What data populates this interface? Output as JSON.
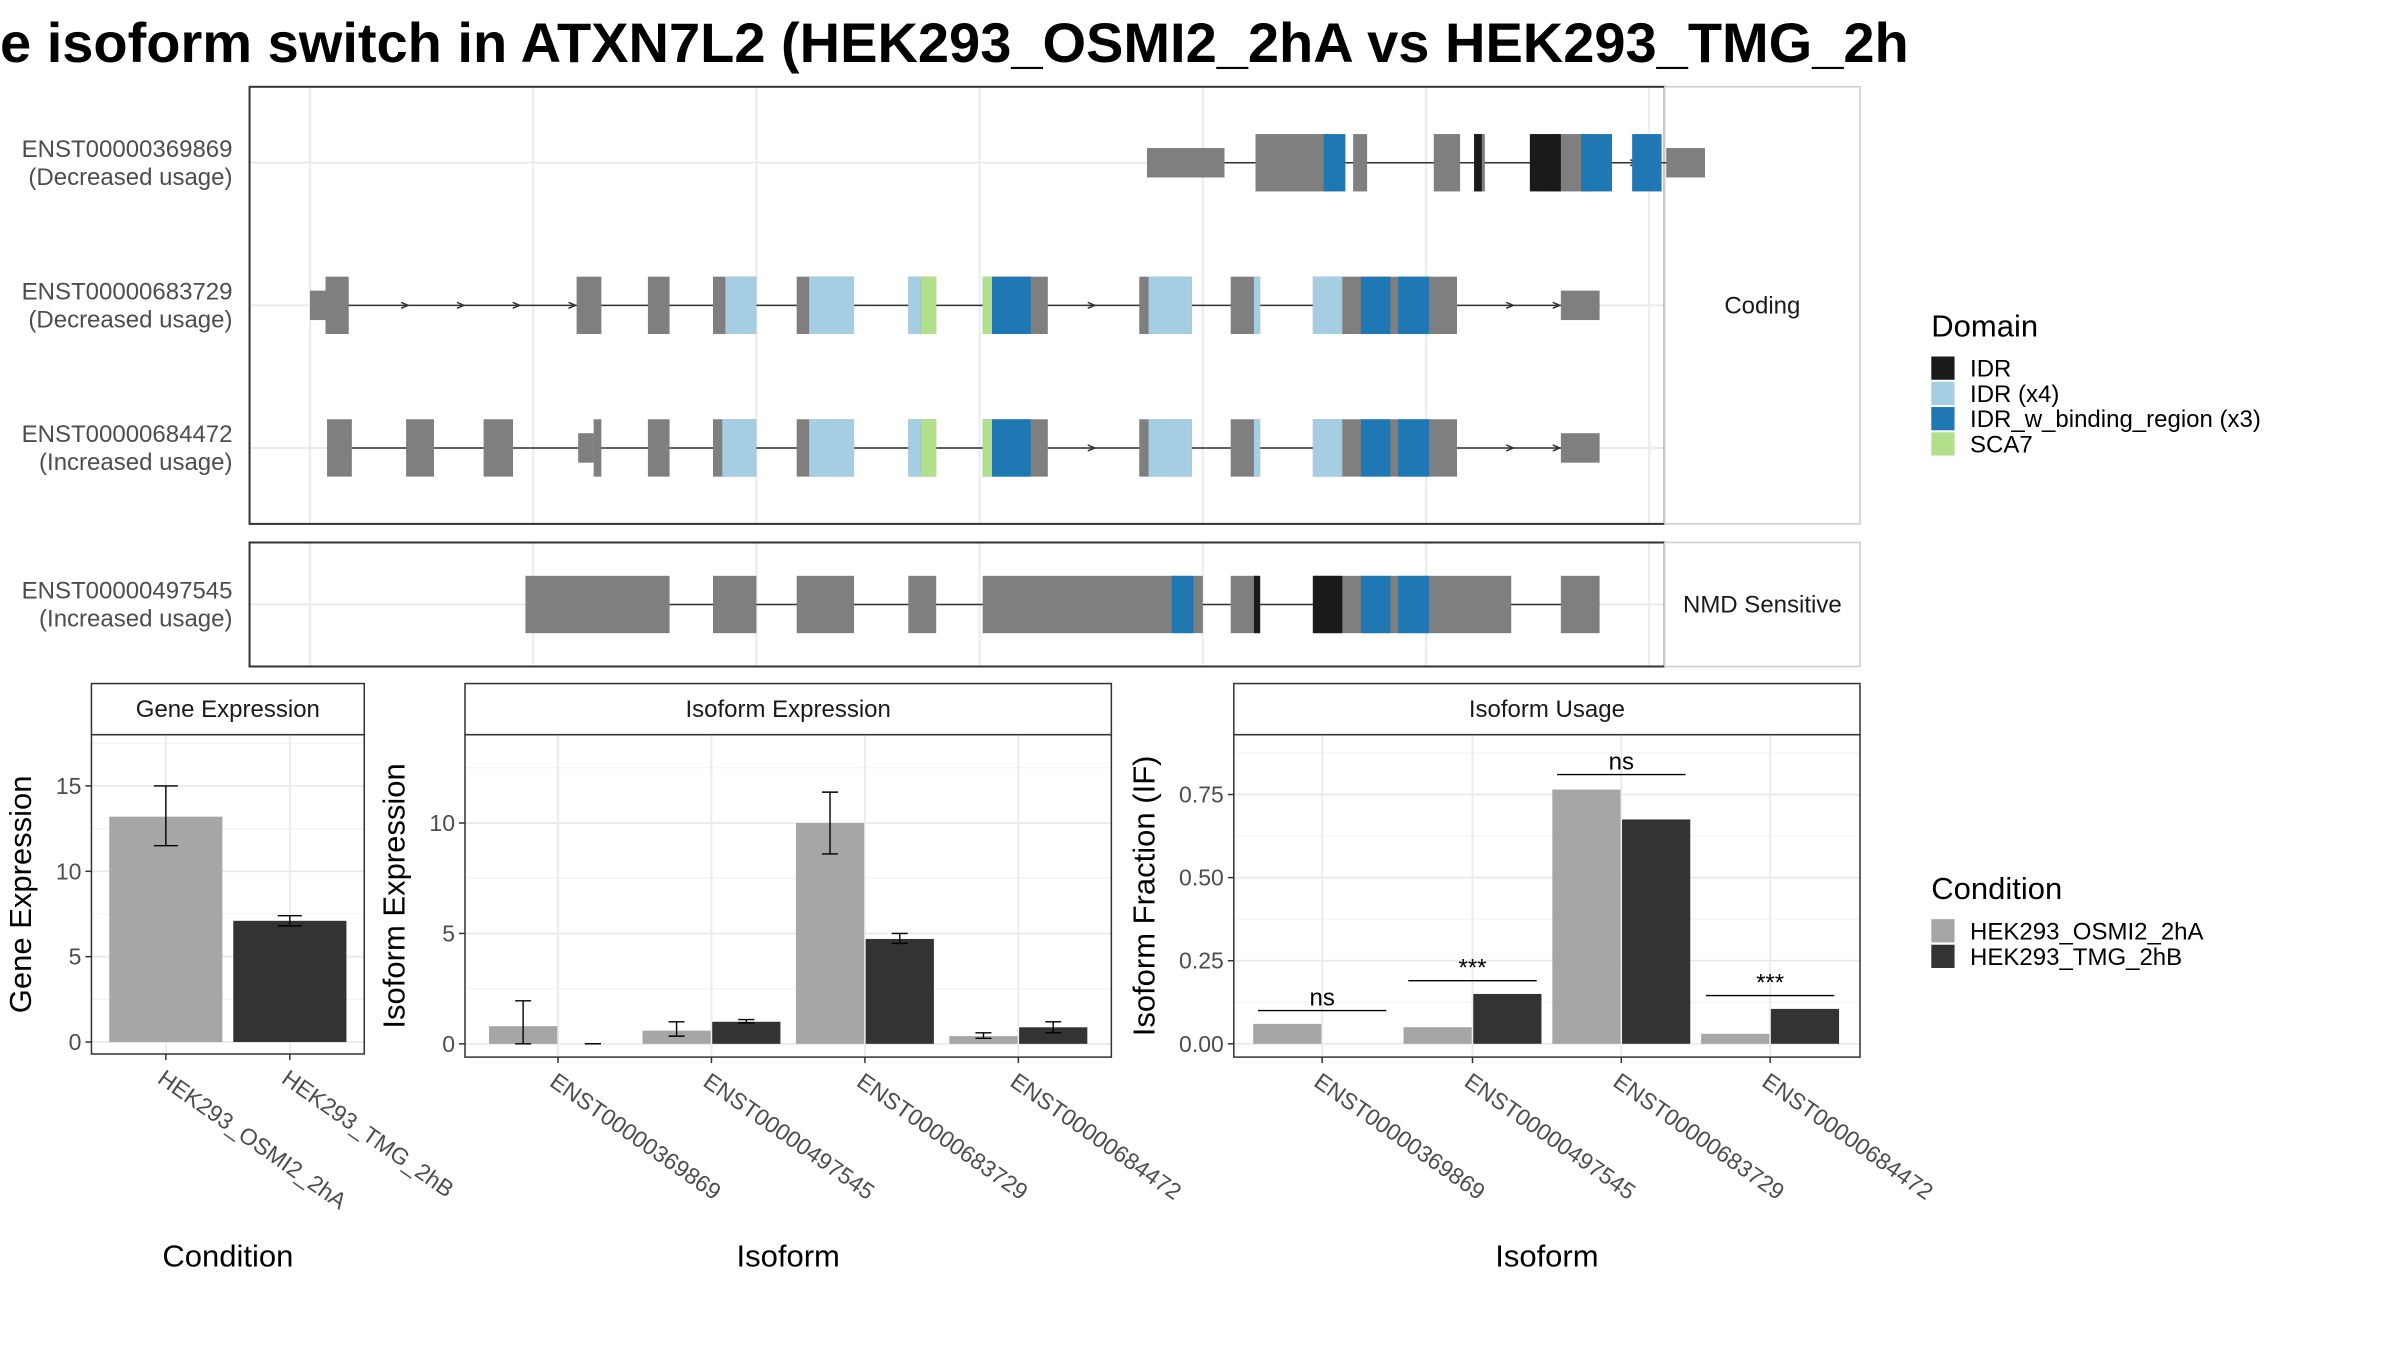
{
  "title": "e isoform switch in ATXN7L2 (HEK293_OSMI2_2hA vs HEK293_TMG_2h",
  "colors": {
    "IDR": "#1a1a1a",
    "IDR (x4)": "#a6cee3",
    "IDR_w_binding_region (x3)": "#1f78b4",
    "SCA7": "#b2df8a",
    "exon": "#7f7f7f",
    "cond_a": "#a6a6a6",
    "cond_b": "#333333"
  },
  "structure": {
    "facets": [
      {
        "label": "Coding",
        "transcripts": [
          "ENST00000369869",
          "ENST00000683729",
          "ENST00000684472"
        ]
      },
      {
        "label": "NMD Sensitive",
        "transcripts": [
          "ENST00000497545"
        ]
      }
    ],
    "transcripts": [
      {
        "id": "ENST00000369869",
        "usage": "(Decreased usage)",
        "exons": [
          [
            810,
            860
          ],
          [
            873,
            882
          ],
          [
            925,
            942
          ],
          [
            952,
            958
          ],
          [
            1000,
            1027
          ]
        ],
        "utr": [
          [
            740,
            790
          ],
          [
            1075,
            1100
          ]
        ],
        "domains": [
          [
            "IDR_w_binding_region (x3)",
            854,
            868
          ],
          [
            "IDR",
            951,
            956
          ],
          [
            "IDR",
            987,
            1007
          ],
          [
            "IDR_w_binding_region (x3)",
            1020,
            1040
          ],
          [
            "IDR_w_binding_region (x3)",
            1053,
            1072
          ]
        ],
        "arrows": [
          1025,
          1055,
          1080
        ]
      },
      {
        "id": "ENST00000683729",
        "usage": "(Decreased usage)",
        "exons": [
          [
            210,
            225
          ],
          [
            372,
            388
          ],
          [
            418,
            432
          ],
          [
            460,
            488
          ],
          [
            514,
            551
          ],
          [
            586,
            604
          ],
          [
            634,
            676
          ],
          [
            735,
            769
          ],
          [
            794,
            813
          ],
          [
            847,
            940
          ]
        ],
        "utr": [
          [
            200,
            210
          ],
          [
            1007,
            1032
          ]
        ],
        "domains": [
          [
            "IDR (x4)",
            468,
            488
          ],
          [
            "IDR (x4)",
            522,
            551
          ],
          [
            "IDR (x4)",
            586,
            594
          ],
          [
            "SCA7",
            594,
            604
          ],
          [
            "SCA7",
            634,
            640
          ],
          [
            "IDR_w_binding_region (x3)",
            640,
            665
          ],
          [
            "IDR (x4)",
            741,
            769
          ],
          [
            "IDR (x4)",
            809,
            813
          ],
          [
            "IDR (x4)",
            847,
            866
          ],
          [
            "IDR_w_binding_region (x3)",
            878,
            897
          ],
          [
            "IDR_w_binding_region (x3)",
            902,
            922
          ]
        ],
        "arrows": [
          262,
          298,
          334,
          370,
          705,
          975,
          1005
        ]
      },
      {
        "id": "ENST00000684472",
        "usage": "(Increased usage)",
        "exons": [
          [
            211,
            227
          ],
          [
            262,
            280
          ],
          [
            312,
            331
          ],
          [
            383,
            388
          ],
          [
            418,
            432
          ],
          [
            460,
            488
          ],
          [
            514,
            551
          ],
          [
            586,
            604
          ],
          [
            634,
            676
          ],
          [
            735,
            769
          ],
          [
            794,
            813
          ],
          [
            847,
            940
          ]
        ],
        "utr": [
          [
            373,
            383
          ],
          [
            1007,
            1032
          ]
        ],
        "domains": [
          [
            "IDR (x4)",
            466,
            488
          ],
          [
            "IDR (x4)",
            522,
            551
          ],
          [
            "IDR (x4)",
            586,
            594
          ],
          [
            "SCA7",
            594,
            604
          ],
          [
            "SCA7",
            634,
            640
          ],
          [
            "IDR_w_binding_region (x3)",
            640,
            665
          ],
          [
            "IDR (x4)",
            741,
            769
          ],
          [
            "IDR (x4)",
            809,
            813
          ],
          [
            "IDR (x4)",
            847,
            866
          ],
          [
            "IDR_w_binding_region (x3)",
            878,
            897
          ],
          [
            "IDR_w_binding_region (x3)",
            902,
            922
          ]
        ],
        "arrows": [
          705,
          975,
          1005
        ]
      },
      {
        "id": "ENST00000497545",
        "usage": "(Increased usage)",
        "exons": [
          [
            339,
            432
          ],
          [
            460,
            488
          ],
          [
            514,
            551
          ],
          [
            586,
            604
          ],
          [
            634,
            776
          ],
          [
            794,
            813
          ],
          [
            847,
            975
          ],
          [
            1007,
            1032
          ]
        ],
        "utr": [],
        "domains": [
          [
            "IDR_w_binding_region (x3)",
            756,
            770
          ],
          [
            "IDR",
            809,
            813
          ],
          [
            "IDR",
            847,
            866
          ],
          [
            "IDR_w_binding_region (x3)",
            878,
            897
          ],
          [
            "IDR_w_binding_region (x3)",
            902,
            922
          ]
        ],
        "arrows": []
      }
    ]
  },
  "legend_domain": {
    "title": "Domain",
    "items": [
      "IDR",
      "IDR (x4)",
      "IDR_w_binding_region (x3)",
      "SCA7"
    ]
  },
  "legend_condition": {
    "title": "Condition",
    "items": [
      "HEK293_OSMI2_2hA",
      "HEK293_TMG_2hB"
    ]
  },
  "chart_data": [
    {
      "type": "bar",
      "title": "Gene Expression",
      "xlabel": "Condition",
      "ylabel": "Gene Expression",
      "categories": [
        "HEK293_OSMI2_2hA",
        "HEK293_TMG_2hB"
      ],
      "values": [
        13.2,
        7.1
      ],
      "errors": [
        [
          11.5,
          15.0
        ],
        [
          6.8,
          7.4
        ]
      ],
      "ylim": [
        -0.7,
        18
      ],
      "yticks": [
        0,
        5,
        10,
        15
      ]
    },
    {
      "type": "bar",
      "title": "Isoform Expression",
      "xlabel": "Isoform",
      "ylabel": "Isoform Expression",
      "categories": [
        "ENST00000369869",
        "ENST00000497545",
        "ENST00000683729",
        "ENST00000684472"
      ],
      "series": [
        {
          "name": "HEK293_OSMI2_2hA",
          "values": [
            0.8,
            0.6,
            10.0,
            0.35
          ],
          "errors": [
            [
              0.0,
              1.95
            ],
            [
              0.35,
              1.0
            ],
            [
              8.6,
              11.4
            ],
            [
              0.25,
              0.5
            ]
          ]
        },
        {
          "name": "HEK293_TMG_2hB",
          "values": [
            0.0,
            1.0,
            4.75,
            0.75
          ],
          "errors": [
            [
              0.0,
              0.0
            ],
            [
              0.95,
              1.1
            ],
            [
              4.55,
              5.0
            ],
            [
              0.5,
              1.0
            ]
          ]
        }
      ],
      "ylim": [
        -0.6,
        14
      ],
      "yticks": [
        0,
        5,
        10
      ]
    },
    {
      "type": "bar",
      "title": "Isoform Usage",
      "xlabel": "Isoform",
      "ylabel": "Isoform Fraction (IF)",
      "categories": [
        "ENST00000369869",
        "ENST00000497545",
        "ENST00000683729",
        "ENST00000684472"
      ],
      "series": [
        {
          "name": "HEK293_OSMI2_2hA",
          "values": [
            0.06,
            0.05,
            0.765,
            0.03
          ]
        },
        {
          "name": "HEK293_TMG_2hB",
          "values": [
            0.0,
            0.15,
            0.675,
            0.105
          ]
        }
      ],
      "significance": [
        "ns",
        "***",
        "ns",
        "***"
      ],
      "sig_y": [
        0.1,
        0.19,
        0.81,
        0.145
      ],
      "ylim": [
        -0.04,
        0.93
      ],
      "yticks": [
        "0.00",
        "0.25",
        "0.50",
        "0.75"
      ]
    }
  ]
}
